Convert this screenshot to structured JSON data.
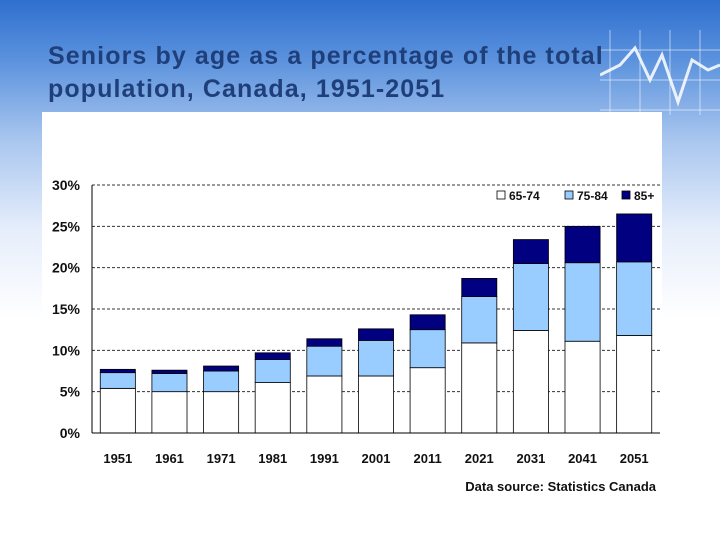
{
  "slide": {
    "title": "Seniors by age as a percentage of the total population, Canada, 1951-2051"
  },
  "chart_data": {
    "type": "bar",
    "stacked": true,
    "title": "Seniors by age as a percentage of the total population, Canada, 1951-2051",
    "xlabel": "",
    "ylabel": "",
    "ylim": [
      0,
      30
    ],
    "y_ticks": [
      0,
      5,
      10,
      15,
      20,
      25,
      30
    ],
    "y_tick_labels": [
      "0%",
      "5%",
      "10%",
      "15%",
      "20%",
      "25%",
      "30%"
    ],
    "grid": true,
    "legend_position": "top-right",
    "categories": [
      "1951",
      "1961",
      "1971",
      "1981",
      "1991",
      "2001",
      "2011",
      "2021",
      "2031",
      "2041",
      "2051"
    ],
    "series": [
      {
        "name": "65-74",
        "color": "#ffffff",
        "values": [
          5.4,
          5.0,
          5.0,
          6.1,
          6.9,
          6.9,
          7.9,
          10.9,
          12.4,
          11.1,
          11.8
        ]
      },
      {
        "name": "75-84",
        "color": "#99ccff",
        "values": [
          1.9,
          2.2,
          2.5,
          2.8,
          3.6,
          4.3,
          4.6,
          5.6,
          8.1,
          9.5,
          8.9
        ]
      },
      {
        "name": "85+",
        "color": "#000080",
        "values": [
          0.4,
          0.4,
          0.6,
          0.8,
          0.9,
          1.4,
          1.8,
          2.2,
          2.9,
          4.4,
          5.8
        ]
      }
    ],
    "source_note": "Data source: Statistics Canada"
  }
}
